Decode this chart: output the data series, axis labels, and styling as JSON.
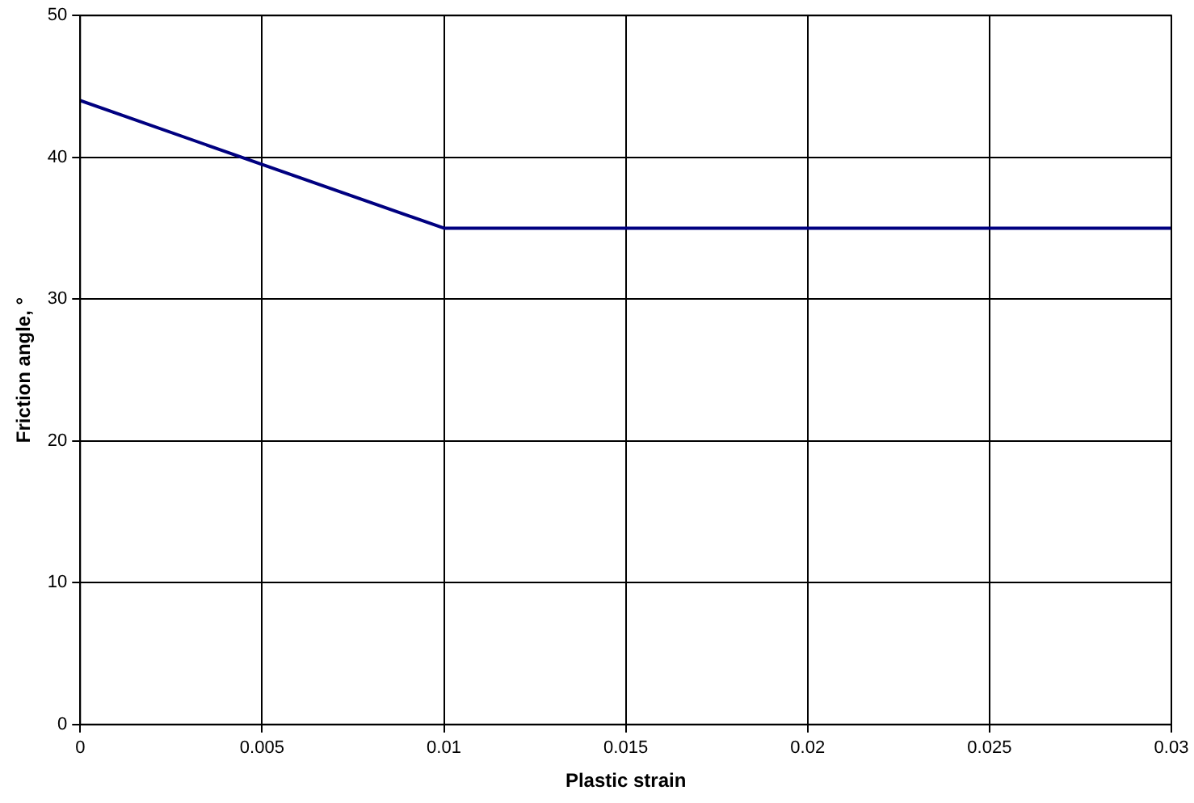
{
  "chart_data": {
    "type": "line",
    "xlabel": "Plastic strain",
    "ylabel": "Friction angle, °",
    "x": [
      0,
      0.01,
      0.03
    ],
    "series": [
      {
        "color": "#000080",
        "values": [
          44,
          35,
          35
        ]
      }
    ],
    "xlim": [
      0,
      0.03
    ],
    "xticks": [
      0,
      0.005,
      0.01,
      0.015,
      0.02,
      0.025,
      0.03
    ],
    "ylim": [
      0,
      50
    ],
    "yticks": [
      0,
      10,
      20,
      30,
      40,
      50
    ],
    "grid": true,
    "marker": "none",
    "line_style": "solid",
    "legend": false
  }
}
